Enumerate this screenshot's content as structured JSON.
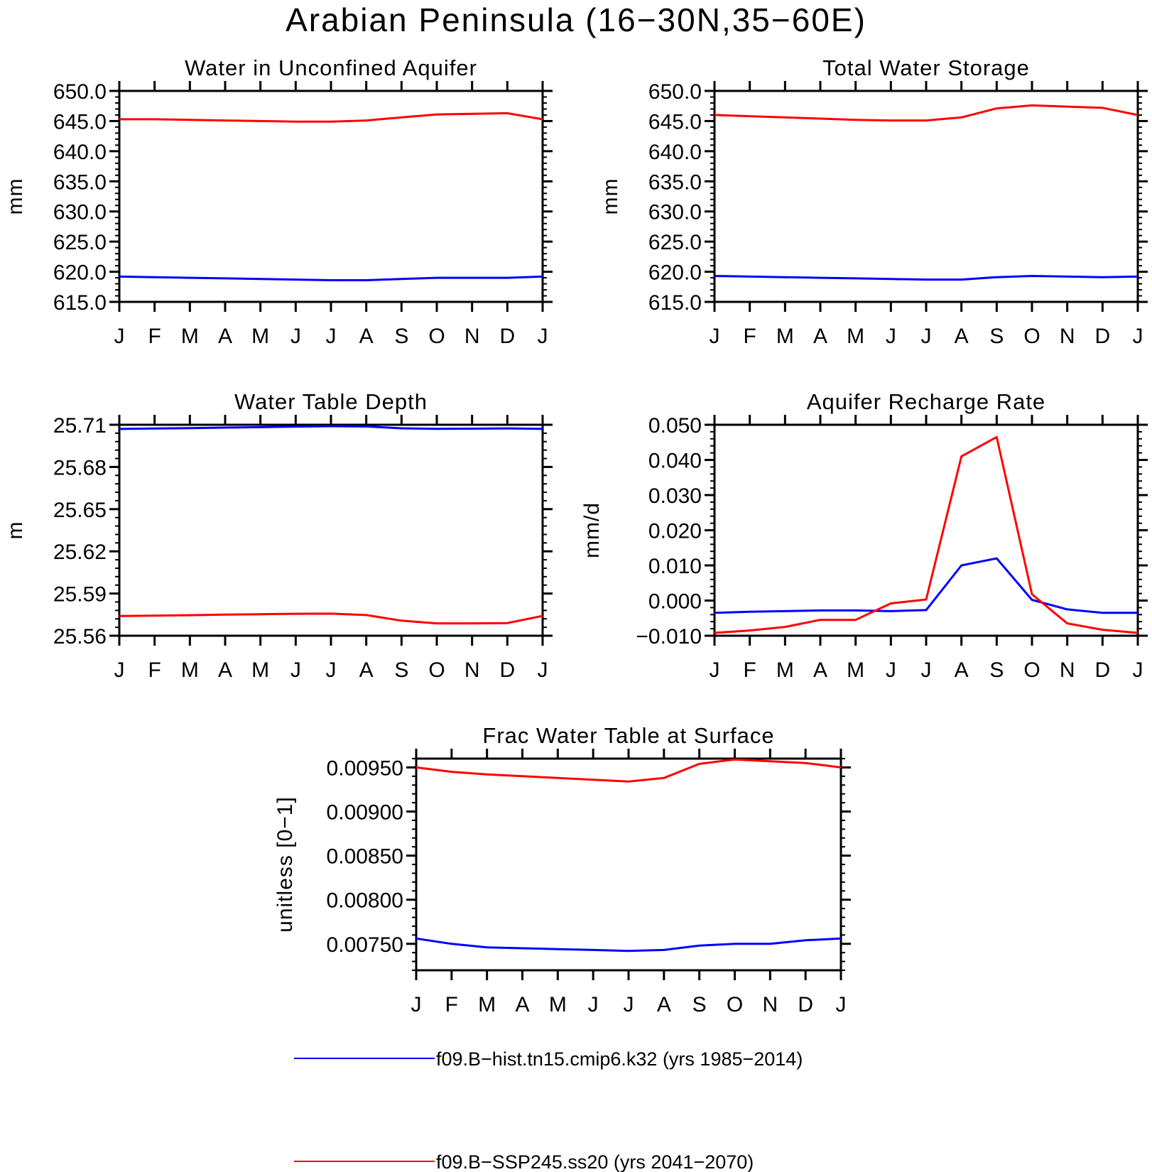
{
  "figure_title": "Arabian Peninsula (16−30N,35−60E)",
  "months": [
    "J",
    "F",
    "M",
    "A",
    "M",
    "J",
    "J",
    "A",
    "S",
    "O",
    "N",
    "D",
    "J"
  ],
  "colors": {
    "hist": "#0000ff",
    "ssp": "#ff0000",
    "axis": "#000000"
  },
  "legend": [
    {
      "label": "f09.B−hist.tn15.cmip6.k32 (yrs 1985−2014)",
      "color": "#0000ff"
    },
    {
      "label": "f09.B−SSP245.ss20 (yrs 2041−2070)",
      "color": "#ff0000"
    }
  ],
  "chart_data": [
    {
      "type": "line",
      "title": "Water in Unconfined Aquifer",
      "xlabel": "",
      "ylabel": "mm",
      "categories": [
        "J",
        "F",
        "M",
        "A",
        "M",
        "J",
        "J",
        "A",
        "S",
        "O",
        "N",
        "D",
        "J"
      ],
      "ylim": [
        615.0,
        650.0
      ],
      "yticks": [
        "650.0",
        "645.0",
        "640.0",
        "635.0",
        "630.0",
        "625.0",
        "620.0",
        "615.0"
      ],
      "ytick_values": [
        650,
        645,
        640,
        635,
        630,
        625,
        620,
        615
      ],
      "series": [
        {
          "name": "f09.B−hist.tn15.cmip6.k32 (yrs 1985−2014)",
          "color": "#0000ff",
          "values": [
            619.2,
            619.1,
            619.0,
            618.9,
            618.8,
            618.7,
            618.6,
            618.6,
            618.8,
            619.0,
            619.0,
            619.0,
            619.2
          ]
        },
        {
          "name": "f09.B−SSP245.ss20 (yrs 2041−2070)",
          "color": "#ff0000",
          "values": [
            645.3,
            645.3,
            645.2,
            645.1,
            645.0,
            644.9,
            644.9,
            645.1,
            645.6,
            646.1,
            646.2,
            646.3,
            645.3
          ]
        }
      ]
    },
    {
      "type": "line",
      "title": "Total Water Storage",
      "xlabel": "",
      "ylabel": "mm",
      "categories": [
        "J",
        "F",
        "M",
        "A",
        "M",
        "J",
        "J",
        "A",
        "S",
        "O",
        "N",
        "D",
        "J"
      ],
      "ylim": [
        615.0,
        650.0
      ],
      "yticks": [
        "650.0",
        "645.0",
        "640.0",
        "635.0",
        "630.0",
        "625.0",
        "620.0",
        "615.0"
      ],
      "ytick_values": [
        650,
        645,
        640,
        635,
        630,
        625,
        620,
        615
      ],
      "series": [
        {
          "name": "f09.B−hist.tn15.cmip6.k32 (yrs 1985−2014)",
          "color": "#0000ff",
          "values": [
            619.3,
            619.2,
            619.1,
            619.0,
            618.9,
            618.8,
            618.7,
            618.7,
            619.1,
            619.3,
            619.2,
            619.1,
            619.2
          ]
        },
        {
          "name": "f09.B−SSP245.ss20 (yrs 2041−2070)",
          "color": "#ff0000",
          "values": [
            646.0,
            645.8,
            645.6,
            645.4,
            645.2,
            645.1,
            645.1,
            645.6,
            647.1,
            647.6,
            647.4,
            647.2,
            646.0
          ]
        }
      ]
    },
    {
      "type": "line",
      "title": "Water Table Depth",
      "xlabel": "",
      "ylabel": "m",
      "categories": [
        "J",
        "F",
        "M",
        "A",
        "M",
        "J",
        "J",
        "A",
        "S",
        "O",
        "N",
        "D",
        "J"
      ],
      "ylim": [
        25.56,
        25.71
      ],
      "yticks": [
        "25.71",
        "25.68",
        "25.65",
        "25.62",
        "25.59",
        "25.56"
      ],
      "ytick_values": [
        25.71,
        25.68,
        25.65,
        25.62,
        25.59,
        25.56
      ],
      "series": [
        {
          "name": "f09.B−hist.tn15.cmip6.k32 (yrs 1985−2014)",
          "color": "#0000ff",
          "values": [
            25.707,
            25.7073,
            25.7076,
            25.708,
            25.7083,
            25.7087,
            25.709,
            25.7088,
            25.7075,
            25.7071,
            25.7072,
            25.7074,
            25.7071
          ]
        },
        {
          "name": "f09.B−SSP245.ss20 (yrs 2041−2070)",
          "color": "#ff0000",
          "values": [
            25.574,
            25.5743,
            25.5746,
            25.575,
            25.5753,
            25.5756,
            25.5757,
            25.5747,
            25.5707,
            25.5688,
            25.5688,
            25.569,
            25.5741
          ]
        }
      ]
    },
    {
      "type": "line",
      "title": "Aquifer Recharge Rate",
      "xlabel": "",
      "ylabel": "mm/d",
      "categories": [
        "J",
        "F",
        "M",
        "A",
        "M",
        "J",
        "J",
        "A",
        "S",
        "O",
        "N",
        "D",
        "J"
      ],
      "ylim": [
        -0.01,
        0.05
      ],
      "yticks": [
        "0.050",
        "0.040",
        "0.030",
        "0.020",
        "0.010",
        "0.000",
        "−0.010"
      ],
      "ytick_values": [
        0.05,
        0.04,
        0.03,
        0.02,
        0.01,
        0.0,
        -0.01
      ],
      "series": [
        {
          "name": "f09.B−hist.tn15.cmip6.k32 (yrs 1985−2014)",
          "color": "#0000ff",
          "values": [
            -0.0035,
            -0.0032,
            -0.003,
            -0.0028,
            -0.0028,
            -0.003,
            -0.0027,
            0.01,
            0.012,
            0.0002,
            -0.0025,
            -0.0035,
            -0.0035
          ]
        },
        {
          "name": "f09.B−SSP245.ss20 (yrs 2041−2070)",
          "color": "#ff0000",
          "values": [
            -0.0092,
            -0.0085,
            -0.0075,
            -0.0055,
            -0.0055,
            -0.0008,
            0.0003,
            0.041,
            0.0465,
            0.0018,
            -0.0065,
            -0.0083,
            -0.0092
          ]
        }
      ]
    },
    {
      "type": "line",
      "title": "Frac Water Table at Surface",
      "xlabel": "",
      "ylabel": "unitless [0−1]",
      "categories": [
        "J",
        "F",
        "M",
        "A",
        "M",
        "J",
        "J",
        "A",
        "S",
        "O",
        "N",
        "D",
        "J"
      ],
      "ylim": [
        0.0072,
        0.0096
      ],
      "yticks": [
        "0.00950",
        "0.00900",
        "0.00850",
        "0.00800",
        "0.00750"
      ],
      "ytick_values": [
        0.0095,
        0.009,
        0.0085,
        0.008,
        0.0075
      ],
      "series": [
        {
          "name": "f09.B−hist.tn15.cmip6.k32 (yrs 1985−2014)",
          "color": "#0000ff",
          "values": [
            0.00756,
            0.0075,
            0.00746,
            0.00745,
            0.00744,
            0.00743,
            0.00742,
            0.00743,
            0.00748,
            0.0075,
            0.0075,
            0.00754,
            0.00756
          ]
        },
        {
          "name": "f09.B−SSP245.ss20 (yrs 2041−2070)",
          "color": "#ff0000",
          "values": [
            0.0095,
            0.00945,
            0.00942,
            0.0094,
            0.00938,
            0.00936,
            0.00934,
            0.00938,
            0.00954,
            0.00959,
            0.00957,
            0.00955,
            0.0095
          ]
        }
      ]
    }
  ]
}
